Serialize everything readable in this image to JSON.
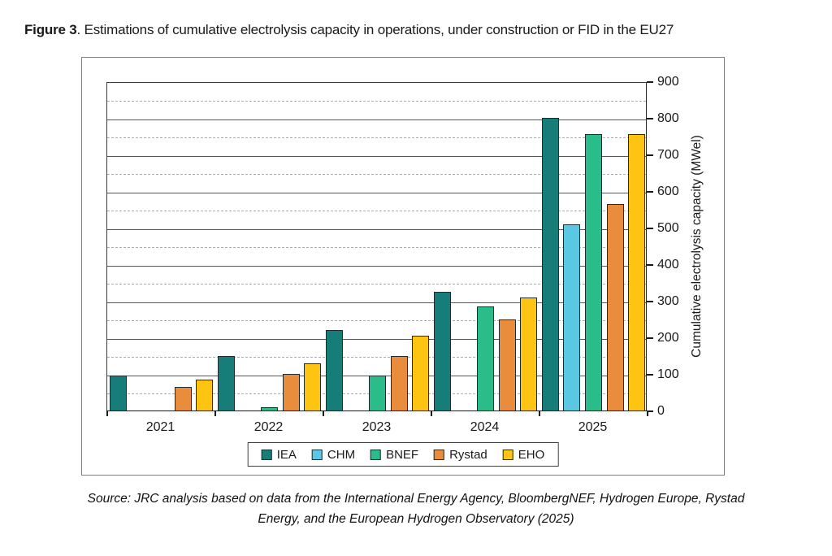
{
  "figure": {
    "label": "Figure 3",
    "title_rest": ". Estimations of cumulative electrolysis capacity in operations, under construction or FID in the EU27"
  },
  "chart_data": {
    "type": "bar",
    "categories": [
      "2021",
      "2022",
      "2023",
      "2024",
      "2025"
    ],
    "series": [
      {
        "name": "IEA",
        "color": "#177d79",
        "values": [
          95,
          150,
          220,
          325,
          800
        ]
      },
      {
        "name": "CHM",
        "color": "#5ac8e3",
        "values": [
          null,
          null,
          null,
          null,
          510
        ]
      },
      {
        "name": "BNEF",
        "color": "#2abd8a",
        "values": [
          null,
          10,
          95,
          285,
          755
        ]
      },
      {
        "name": "Rystad",
        "color": "#e98c3b",
        "values": [
          65,
          100,
          150,
          250,
          565
        ]
      },
      {
        "name": "EHO",
        "color": "#fdc511",
        "values": [
          85,
          130,
          205,
          310,
          755
        ]
      }
    ],
    "title": "Estimations of cumulative electrolysis capacity in operations, under construction or FID in the EU27",
    "xlabel": "",
    "ylabel": "Cumulative electrolysis capacity (MWel)",
    "ylim": [
      0,
      900
    ],
    "ytick_step": 100,
    "minor_gridline_step": 50,
    "grid": true,
    "legend_position": "bottom",
    "legend_entries": [
      "IEA",
      "CHM",
      "BNEF",
      "Rystad",
      "EHO"
    ]
  },
  "source": {
    "line1": "Source: JRC analysis based on data from the International Energy Agency, BloombergNEF, Hydrogen Europe, Rystad",
    "line2": "Energy, and the European Hydrogen Observatory (2025)"
  }
}
